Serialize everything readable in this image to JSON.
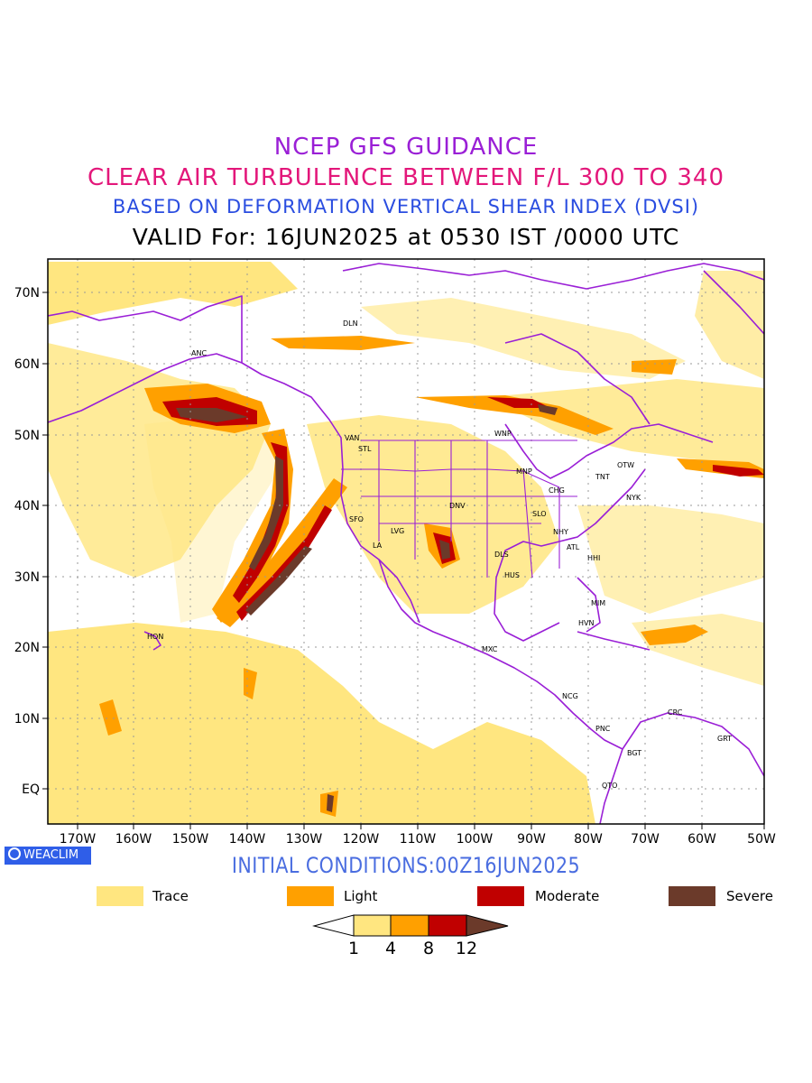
{
  "title": {
    "line1": "NCEP GFS GUIDANCE",
    "line2": "CLEAR AIR TURBULENCE BETWEEN F/L 300 TO 340",
    "line3": "BASED ON DEFORMATION VERTICAL SHEAR INDEX (DVSI)",
    "line4": "VALID For: 16JUN2025 at 0530 IST /0000 UTC"
  },
  "map": {
    "lat_labels": [
      "70N",
      "60N",
      "50N",
      "40N",
      "30N",
      "20N",
      "10N",
      "EQ"
    ],
    "lon_labels": [
      "170W",
      "160W",
      "150W",
      "140W",
      "130W",
      "120W",
      "110W",
      "100W",
      "90W",
      "80W",
      "70W",
      "60W",
      "50W"
    ],
    "cities": [
      {
        "name": "DLN"
      },
      {
        "name": "ANC"
      },
      {
        "name": "VAN"
      },
      {
        "name": "STL"
      },
      {
        "name": "WNP"
      },
      {
        "name": "OTW"
      },
      {
        "name": "MNP"
      },
      {
        "name": "TNT"
      },
      {
        "name": "CHG"
      },
      {
        "name": "NYK"
      },
      {
        "name": "DNV"
      },
      {
        "name": "SFO"
      },
      {
        "name": "LVG"
      },
      {
        "name": "SLO"
      },
      {
        "name": "LA"
      },
      {
        "name": "NHY"
      },
      {
        "name": "ATL"
      },
      {
        "name": "DLS"
      },
      {
        "name": "HHI"
      },
      {
        "name": "HUS"
      },
      {
        "name": "MIM"
      },
      {
        "name": "HVN"
      },
      {
        "name": "HON"
      },
      {
        "name": "MXC"
      },
      {
        "name": "NCG"
      },
      {
        "name": "CRC"
      },
      {
        "name": "PNC"
      },
      {
        "name": "GRT"
      },
      {
        "name": "BGT"
      },
      {
        "name": "QTO"
      }
    ]
  },
  "badge": {
    "text": "WEACLIM"
  },
  "initial_conditions": "INITIAL CONDITIONS:00Z16JUN2025",
  "legend": [
    {
      "label": "Trace",
      "color": "#ffe680"
    },
    {
      "label": "Light",
      "color": "#ffa000"
    },
    {
      "label": "Moderate",
      "color": "#c00000"
    },
    {
      "label": "Severe",
      "color": "#6b3a2a"
    }
  ],
  "colorbar": {
    "labels": [
      "1",
      "4",
      "8",
      "12"
    ],
    "colors": [
      "#ffffff",
      "#ffe680",
      "#ffa000",
      "#c00000",
      "#6b3a2a"
    ]
  },
  "colors": {
    "border": "#9a1fd6",
    "grid": "#999999"
  }
}
